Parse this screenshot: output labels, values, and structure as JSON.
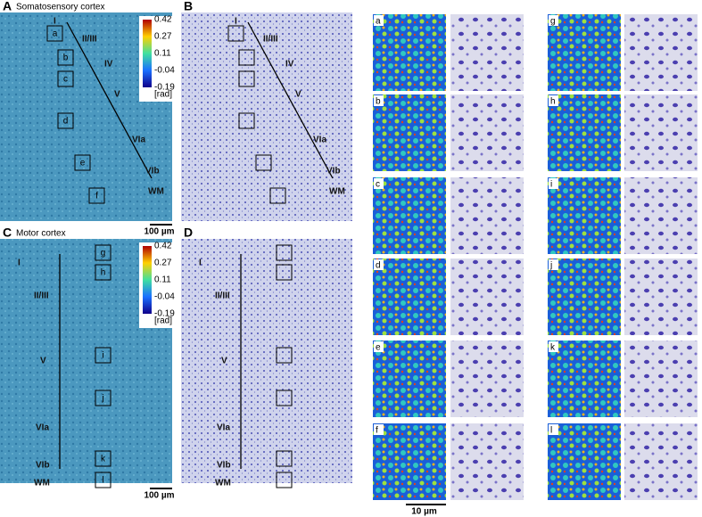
{
  "panels": [
    {
      "letter": "A",
      "title": "Somatosensory cortex",
      "layers": [
        "I",
        "II/III",
        "IV",
        "V",
        "VIa",
        "VIb",
        "WM"
      ],
      "boxes": [
        "a",
        "b",
        "c",
        "d",
        "e",
        "f"
      ]
    },
    {
      "letter": "B",
      "layers": [
        "I",
        "II/III",
        "IV",
        "V",
        "VIa",
        "VIb",
        "WM"
      ]
    },
    {
      "letter": "C",
      "title": "Motor cortex",
      "layers": [
        "I",
        "II/III",
        "V",
        "VIa",
        "VIb",
        "WM"
      ],
      "boxes": [
        "g",
        "h",
        "i",
        "j",
        "k",
        "l"
      ]
    },
    {
      "letter": "D",
      "layers": [
        "I",
        "II/III",
        "V",
        "VIa",
        "VIb",
        "WM"
      ]
    }
  ],
  "colorbar": {
    "ticks": [
      "0.42",
      "0.27",
      "0.11",
      "-0.04",
      "-0.19"
    ],
    "unit": "[rad]"
  },
  "scale_bars": [
    "100 µm",
    "100 µm",
    "10 µm"
  ],
  "insets": [
    "a",
    "b",
    "c",
    "d",
    "e",
    "f",
    "g",
    "h",
    "i",
    "j",
    "k",
    "l"
  ]
}
